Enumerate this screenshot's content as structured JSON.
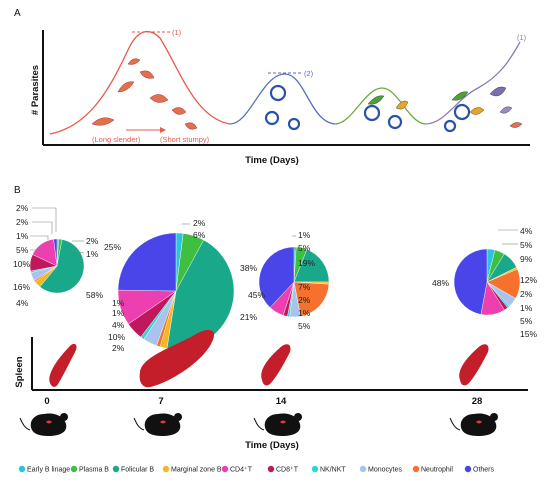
{
  "panel_a": {
    "label": "A",
    "ylabel": "# Parasites",
    "xlabel": "Time (Days)",
    "annotations": {
      "peak1": "(1)",
      "peak2": "(2)",
      "peak3": "(1)",
      "long_slender": "(Long slender)",
      "short_stumpy": "(Short stumpy)"
    },
    "colors": {
      "wave1": "#e8584c",
      "wave2": "#5b6fb8",
      "wave3": "#6aaa3a",
      "wave4": "#8a7ab8"
    }
  },
  "panel_b": {
    "label": "B",
    "organ_label": "Spleen",
    "xlabel": "Time (Days)",
    "days": [
      "0",
      "7",
      "14",
      "28"
    ]
  },
  "legend": [
    {
      "name": "Early B linage",
      "color": "#29c4e0"
    },
    {
      "name": "Plasma B",
      "color": "#3fbf3f"
    },
    {
      "name": "Folicular B",
      "color": "#1aa88a"
    },
    {
      "name": "Marginal zone B",
      "color": "#f2b824"
    },
    {
      "name": "CD4⁺T",
      "color": "#ee3fb0"
    },
    {
      "name": "CD8⁺T",
      "color": "#c0185c"
    },
    {
      "name": "NK/NKT",
      "color": "#2cd6d6"
    },
    {
      "name": "Monocytes",
      "color": "#a9c4ec"
    },
    {
      "name": "Neutrophil",
      "color": "#f5712d"
    },
    {
      "name": "Others",
      "color": "#4a45e8"
    }
  ],
  "chart_data": [
    {
      "type": "pie",
      "title": "Day 0",
      "categories": [
        "Early B linage",
        "Plasma B",
        "Folicular B",
        "Marginal zone B",
        "CD4⁺T",
        "CD8⁺T",
        "NK/NKT",
        "Monocytes",
        "Neutrophil",
        "Others"
      ],
      "values": [
        1,
        2,
        58,
        4,
        16,
        10,
        1,
        5,
        1,
        2
      ],
      "labels": [
        "2%",
        "2%",
        "1%",
        "5%",
        "10%",
        "16%",
        "4%",
        "58%",
        "2%",
        "1%"
      ]
    },
    {
      "type": "pie",
      "title": "Day 7",
      "categories": [
        "Early B linage",
        "Plasma B",
        "Folicular B",
        "Marginal zone B",
        "CD4⁺T",
        "CD8⁺T",
        "NK/NKT",
        "Monocytes",
        "Neutrophil",
        "Others"
      ],
      "values": [
        2,
        6,
        45,
        2,
        10,
        5,
        1,
        4,
        1,
        25
      ],
      "labels": [
        "25%",
        "2%",
        "6%",
        "45%",
        "1%",
        "4%",
        "1%",
        "5%",
        "10%",
        "2%"
      ]
    },
    {
      "type": "pie",
      "title": "Day 14",
      "categories": [
        "Early B linage",
        "Plasma B",
        "Folicular B",
        "Marginal zone B",
        "CD4⁺T",
        "CD8⁺T",
        "NK/NKT",
        "Monocytes",
        "Neutrophil",
        "Others"
      ],
      "values": [
        1,
        5,
        19,
        1,
        7,
        2,
        1,
        5,
        21,
        38
      ],
      "labels": [
        "1%",
        "5%",
        "19%",
        "38%",
        "7%",
        "2%",
        "1%",
        "5%",
        "21%"
      ]
    },
    {
      "type": "pie",
      "title": "Day 28",
      "categories": [
        "Early B linage",
        "Plasma B",
        "Folicular B",
        "Marginal zone B",
        "CD4⁺T",
        "CD8⁺T",
        "NK/NKT",
        "Monocytes",
        "Neutrophil",
        "Others"
      ],
      "values": [
        4,
        5,
        9,
        1,
        12,
        2,
        1,
        5,
        15,
        48
      ],
      "labels": [
        "4%",
        "5%",
        "9%",
        "12%",
        "2%",
        "1%",
        "5%",
        "15%",
        "48%"
      ]
    }
  ]
}
